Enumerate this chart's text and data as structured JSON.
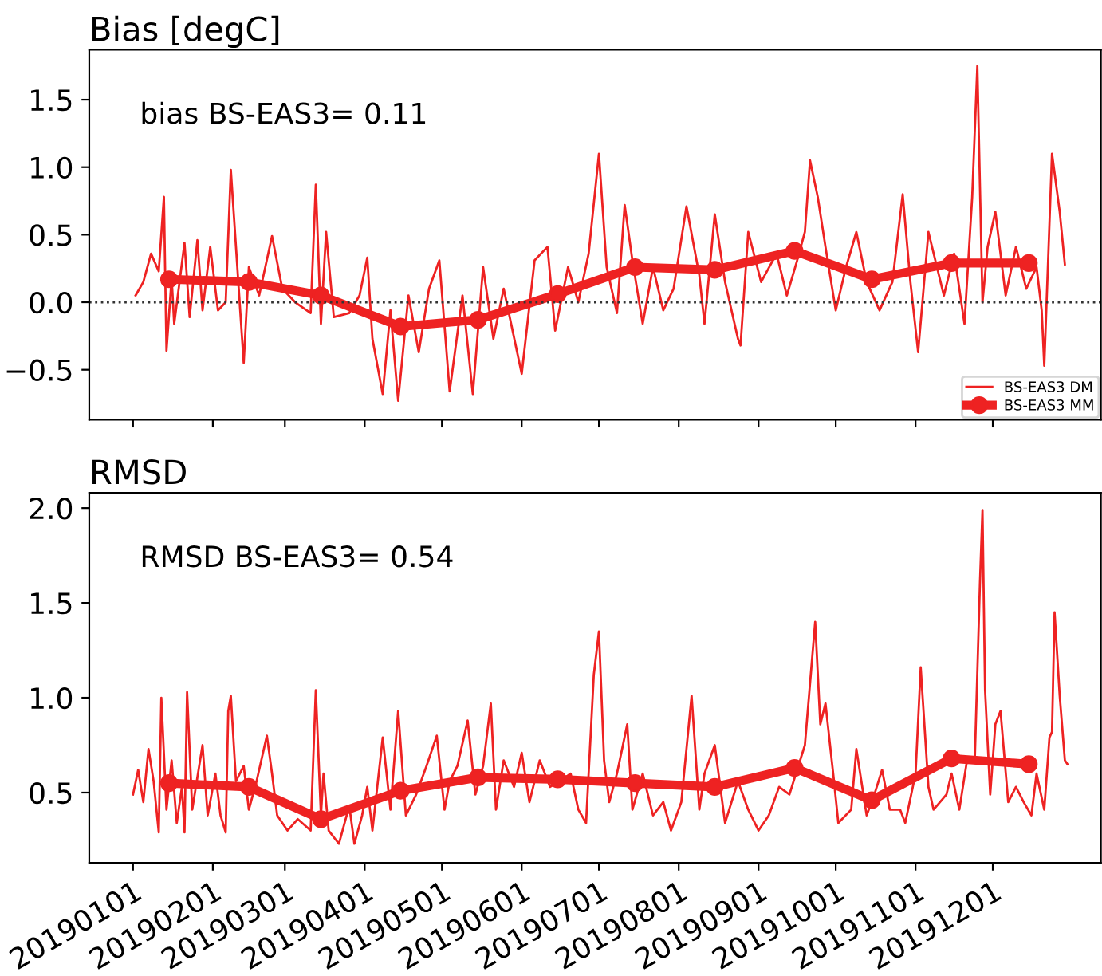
{
  "chart_data": [
    {
      "type": "line",
      "title": "Bias [degC]",
      "annotations": [
        "bias BS-EAS3= 0.11"
      ],
      "xlim": [
        "2018-12-15",
        "2020-01-12"
      ],
      "xticks": [
        {
          "value": "2019-01-01",
          "label": null
        },
        {
          "value": "2019-02-01",
          "label": null
        },
        {
          "value": "2019-03-01",
          "label": null
        },
        {
          "value": "2019-04-01",
          "label": null
        },
        {
          "value": "2019-05-01",
          "label": null
        },
        {
          "value": "2019-06-01",
          "label": null
        },
        {
          "value": "2019-07-01",
          "label": null
        },
        {
          "value": "2019-08-01",
          "label": null
        },
        {
          "value": "2019-09-01",
          "label": null
        },
        {
          "value": "2019-10-01",
          "label": null
        },
        {
          "value": "2019-11-01",
          "label": null
        },
        {
          "value": "2019-12-01",
          "label": null
        }
      ],
      "ylim": [
        -0.87,
        1.87
      ],
      "yticks": [
        {
          "value": -0.5,
          "label": "−0.5"
        },
        {
          "value": 0,
          "label": "0.0"
        },
        {
          "value": 0.5,
          "label": "0.5"
        },
        {
          "value": 1,
          "label": "1.0"
        },
        {
          "value": 1.5,
          "label": "1.5"
        }
      ],
      "tick_labels": "y",
      "legend": "lower right",
      "grid": false,
      "ref_lines": [
        {
          "axis": "y",
          "value": 0,
          "color": "#333333",
          "line_style": "dotted"
        }
      ],
      "series": [
        {
          "name": "BS-EAS3 DM",
          "color": "#ee2222",
          "marker": "none",
          "x": [
            "2019-01-02",
            "2019-01-05",
            "2019-01-08",
            "2019-01-11",
            "2019-01-13",
            "2019-01-14",
            "2019-01-16",
            "2019-01-17",
            "2019-01-21",
            "2019-01-23",
            "2019-01-26",
            "2019-01-28",
            "2019-01-31",
            "2019-02-03",
            "2019-02-06",
            "2019-02-08",
            "2019-02-13",
            "2019-02-15",
            "2019-02-19",
            "2019-02-24",
            "2019-02-28",
            "2019-03-05",
            "2019-03-11",
            "2019-03-13",
            "2019-03-15",
            "2019-03-17",
            "2019-03-20",
            "2019-03-26",
            "2019-03-30",
            "2019-04-02",
            "2019-04-04",
            "2019-04-08",
            "2019-04-11",
            "2019-04-14",
            "2019-04-18",
            "2019-04-22",
            "2019-04-26",
            "2019-04-30",
            "2019-05-04",
            "2019-05-09",
            "2019-05-13",
            "2019-05-17",
            "2019-05-21",
            "2019-05-25",
            "2019-06-01",
            "2019-06-06",
            "2019-06-11",
            "2019-06-14",
            "2019-06-19",
            "2019-06-23",
            "2019-06-27",
            "2019-07-01",
            "2019-07-04",
            "2019-07-08",
            "2019-07-11",
            "2019-07-14",
            "2019-07-18",
            "2019-07-22",
            "2019-07-26",
            "2019-07-30",
            "2019-08-04",
            "2019-08-09",
            "2019-08-11",
            "2019-08-15",
            "2019-08-19",
            "2019-08-24",
            "2019-08-25",
            "2019-08-28",
            "2019-09-02",
            "2019-09-08",
            "2019-09-12",
            "2019-09-16",
            "2019-09-19",
            "2019-09-21",
            "2019-09-24",
            "2019-09-27",
            "2019-10-01",
            "2019-10-05",
            "2019-10-09",
            "2019-10-13",
            "2019-10-18",
            "2019-10-23",
            "2019-10-27",
            "2019-10-30",
            "2019-11-02",
            "2019-11-06",
            "2019-11-12",
            "2019-11-16",
            "2019-11-20",
            "2019-11-23",
            "2019-11-25",
            "2019-11-27",
            "2019-11-29",
            "2019-12-02",
            "2019-12-06",
            "2019-12-10",
            "2019-12-14",
            "2019-12-18",
            "2019-12-20",
            "2019-12-21",
            "2019-12-24",
            "2019-12-27",
            "2019-12-29"
          ],
          "values": [
            0.05,
            0.15,
            0.36,
            0.23,
            0.78,
            -0.36,
            0.18,
            -0.16,
            0.44,
            -0.11,
            0.46,
            -0.06,
            0.41,
            -0.06,
            0,
            0.98,
            -0.45,
            0.26,
            0.05,
            0.49,
            0.1,
            0,
            -0.08,
            0.87,
            -0.16,
            0.52,
            -0.11,
            -0.08,
            0.05,
            0.33,
            -0.27,
            -0.68,
            -0.06,
            -0.73,
            0.05,
            -0.37,
            0.1,
            0.31,
            -0.66,
            0.05,
            -0.68,
            0.26,
            -0.27,
            0.1,
            -0.53,
            0.31,
            0.41,
            -0.21,
            0.26,
            0,
            0.36,
            1.1,
            0.26,
            -0.08,
            0.72,
            0.31,
            -0.16,
            0.26,
            -0.06,
            0.1,
            0.71,
            0.2,
            -0.16,
            0.65,
            0.15,
            -0.27,
            -0.32,
            0.52,
            0.15,
            0.36,
            0.05,
            0.31,
            0.52,
            1.05,
            0.78,
            0.41,
            -0.06,
            0.26,
            0.52,
            0.15,
            -0.06,
            0.15,
            0.8,
            0.15,
            -0.37,
            0.52,
            0.05,
            0.36,
            -0.16,
            0.78,
            1.75,
            0,
            0.41,
            0.67,
            0.05,
            0.41,
            0.1,
            0.26,
            -0.06,
            -0.47,
            1.1,
            0.67,
            0.28
          ]
        },
        {
          "name": "BS-EAS3 MM",
          "color": "#ee2222",
          "marker": "circle",
          "x": [
            "2019-01-15",
            "2019-02-15",
            "2019-03-15",
            "2019-04-15",
            "2019-05-15",
            "2019-06-15",
            "2019-07-15",
            "2019-08-15",
            "2019-09-15",
            "2019-10-15",
            "2019-11-15",
            "2019-12-15"
          ],
          "values": [
            0.17,
            0.15,
            0.05,
            -0.18,
            -0.13,
            0.06,
            0.26,
            0.24,
            0.38,
            0.17,
            0.29,
            0.29
          ]
        }
      ]
    },
    {
      "type": "line",
      "title": "RMSD",
      "annotations": [
        "RMSD BS-EAS3= 0.54"
      ],
      "xlim": [
        "2018-12-15",
        "2020-01-12"
      ],
      "xticks": [
        {
          "value": "2019-01-01",
          "label": "20190101"
        },
        {
          "value": "2019-02-01",
          "label": "20190201"
        },
        {
          "value": "2019-03-01",
          "label": "20190301"
        },
        {
          "value": "2019-04-01",
          "label": "20190401"
        },
        {
          "value": "2019-05-01",
          "label": "20190501"
        },
        {
          "value": "2019-06-01",
          "label": "20190601"
        },
        {
          "value": "2019-07-01",
          "label": "20190701"
        },
        {
          "value": "2019-08-01",
          "label": "20190801"
        },
        {
          "value": "2019-09-01",
          "label": "20190901"
        },
        {
          "value": "2019-10-01",
          "label": "20191001"
        },
        {
          "value": "2019-11-01",
          "label": "20191101"
        },
        {
          "value": "2019-12-01",
          "label": "20191201"
        }
      ],
      "ylim": [
        0.13,
        2.08
      ],
      "yticks": [
        {
          "value": 0.5,
          "label": "0.5"
        },
        {
          "value": 1,
          "label": "1.0"
        },
        {
          "value": 1.5,
          "label": "1.5"
        },
        {
          "value": 2,
          "label": "2.0"
        }
      ],
      "legend": false,
      "grid": false,
      "series": [
        {
          "color": "#ee2222",
          "marker": "none",
          "x": [
            "2019-01-01",
            "2019-01-03",
            "2019-01-05",
            "2019-01-07",
            "2019-01-09",
            "2019-01-11",
            "2019-01-12",
            "2019-01-14",
            "2019-01-16",
            "2019-01-18",
            "2019-01-20",
            "2019-01-21",
            "2019-01-22",
            "2019-01-24",
            "2019-01-28",
            "2019-01-30",
            "2019-02-02",
            "2019-02-04",
            "2019-02-06",
            "2019-02-07",
            "2019-02-08",
            "2019-02-10",
            "2019-02-13",
            "2019-02-15",
            "2019-02-18",
            "2019-02-22",
            "2019-02-24",
            "2019-02-26",
            "2019-03-02",
            "2019-03-06",
            "2019-03-11",
            "2019-03-13",
            "2019-03-15",
            "2019-03-16",
            "2019-03-18",
            "2019-03-22",
            "2019-03-26",
            "2019-03-28",
            "2019-03-31",
            "2019-04-02",
            "2019-04-04",
            "2019-04-08",
            "2019-04-11",
            "2019-04-14",
            "2019-04-17",
            "2019-04-21",
            "2019-04-25",
            "2019-04-29",
            "2019-05-02",
            "2019-05-04",
            "2019-05-07",
            "2019-05-11",
            "2019-05-14",
            "2019-05-17",
            "2019-05-20",
            "2019-05-22",
            "2019-05-25",
            "2019-05-29",
            "2019-06-01",
            "2019-06-04",
            "2019-06-08",
            "2019-06-12",
            "2019-06-16",
            "2019-06-20",
            "2019-06-23",
            "2019-06-26",
            "2019-06-29",
            "2019-07-01",
            "2019-07-03",
            "2019-07-05",
            "2019-07-08",
            "2019-07-12",
            "2019-07-14",
            "2019-07-18",
            "2019-07-22",
            "2019-07-26",
            "2019-07-29",
            "2019-08-02",
            "2019-08-06",
            "2019-08-09",
            "2019-08-11",
            "2019-08-15",
            "2019-08-19",
            "2019-08-24",
            "2019-08-28",
            "2019-09-01",
            "2019-09-05",
            "2019-09-09",
            "2019-09-13",
            "2019-09-19",
            "2019-09-23",
            "2019-09-25",
            "2019-09-27",
            "2019-09-30",
            "2019-10-02",
            "2019-10-07",
            "2019-10-09",
            "2019-10-13",
            "2019-10-16",
            "2019-10-19",
            "2019-10-22",
            "2019-10-26",
            "2019-10-28",
            "2019-11-01",
            "2019-11-03",
            "2019-11-06",
            "2019-11-08",
            "2019-11-13",
            "2019-11-15",
            "2019-11-18",
            "2019-11-21",
            "2019-11-24",
            "2019-11-26",
            "2019-11-27",
            "2019-11-28",
            "2019-11-30",
            "2019-12-02",
            "2019-12-04",
            "2019-12-07",
            "2019-12-10",
            "2019-12-13",
            "2019-12-16",
            "2019-12-18",
            "2019-12-21",
            "2019-12-23",
            "2019-12-24",
            "2019-12-25",
            "2019-12-27",
            "2019-12-29",
            "2019-12-30"
          ],
          "values": [
            0.49,
            0.62,
            0.45,
            0.73,
            0.56,
            0.29,
            1.0,
            0.41,
            0.67,
            0.34,
            0.53,
            0.29,
            1.03,
            0.41,
            0.75,
            0.38,
            0.6,
            0.38,
            0.29,
            0.93,
            1.01,
            0.56,
            0.64,
            0.41,
            0.56,
            0.8,
            0.6,
            0.38,
            0.3,
            0.36,
            0.3,
            1.04,
            0.38,
            0.6,
            0.3,
            0.23,
            0.43,
            0.23,
            0.38,
            0.53,
            0.3,
            0.79,
            0.41,
            0.93,
            0.38,
            0.49,
            0.64,
            0.8,
            0.41,
            0.56,
            0.64,
            0.88,
            0.49,
            0.64,
            0.97,
            0.41,
            0.67,
            0.53,
            0.71,
            0.45,
            0.67,
            0.53,
            0.56,
            0.6,
            0.41,
            0.34,
            1.12,
            1.35,
            0.67,
            0.45,
            0.6,
            0.86,
            0.41,
            0.6,
            0.38,
            0.45,
            0.3,
            0.45,
            1.01,
            0.41,
            0.6,
            0.75,
            0.34,
            0.56,
            0.41,
            0.3,
            0.38,
            0.53,
            0.49,
            0.75,
            1.4,
            0.86,
            0.97,
            0.6,
            0.34,
            0.41,
            0.73,
            0.38,
            0.49,
            0.62,
            0.41,
            0.41,
            0.34,
            0.6,
            1.16,
            0.53,
            0.41,
            0.49,
            0.6,
            0.41,
            0.67,
            0.67,
            1.6,
            1.99,
            1.04,
            0.49,
            0.86,
            0.93,
            0.45,
            0.53,
            0.45,
            0.38,
            0.6,
            0.41,
            0.79,
            0.82,
            1.45,
            1.01,
            0.67,
            0.65
          ]
        },
        {
          "color": "#ee2222",
          "marker": "circle",
          "x": [
            "2019-01-15",
            "2019-02-15",
            "2019-03-15",
            "2019-04-15",
            "2019-05-15",
            "2019-06-15",
            "2019-07-15",
            "2019-08-15",
            "2019-09-15",
            "2019-10-15",
            "2019-11-15",
            "2019-12-15"
          ],
          "values": [
            0.55,
            0.53,
            0.36,
            0.51,
            0.58,
            0.57,
            0.55,
            0.53,
            0.63,
            0.46,
            0.68,
            0.65
          ]
        }
      ]
    }
  ]
}
